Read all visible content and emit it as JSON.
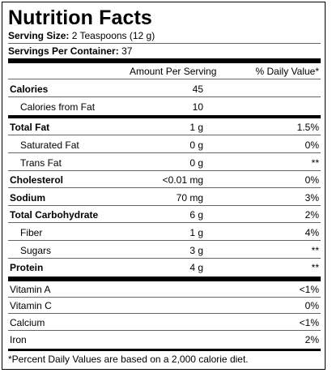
{
  "label": {
    "title": "Nutrition Facts",
    "serving_size_label": "Serving Size:",
    "serving_size_value": "2 Teaspoons (12 g)",
    "servings_per_container_label": "Servings Per Container:",
    "servings_per_container_value": "37",
    "col_amount_header": "Amount Per Serving",
    "col_dv_header": "% Daily Value*",
    "rows": [
      {
        "name": "Calories",
        "amount": "45",
        "dv": ""
      },
      {
        "name": "Calories from Fat",
        "amount": "10",
        "dv": ""
      },
      {
        "name": "Total Fat",
        "amount": "1 g",
        "dv": "1.5%"
      },
      {
        "name": "Saturated Fat",
        "amount": "0 g",
        "dv": "0%"
      },
      {
        "name": "Trans Fat",
        "amount": "0 g",
        "dv": "**"
      },
      {
        "name": "Cholesterol",
        "amount": "<0.01 mg",
        "dv": "0%"
      },
      {
        "name": "Sodium",
        "amount": "70 mg",
        "dv": "3%"
      },
      {
        "name": "Total Carbohydrate",
        "amount": "6 g",
        "dv": "2%"
      },
      {
        "name": "Fiber",
        "amount": "1 g",
        "dv": "4%"
      },
      {
        "name": "Sugars",
        "amount": "3 g",
        "dv": "**"
      },
      {
        "name": "Protein",
        "amount": "4 g",
        "dv": "**"
      }
    ],
    "vitamins": [
      {
        "name": "Vitamin A",
        "dv": "<1%"
      },
      {
        "name": "Vitamin C",
        "dv": "0%"
      },
      {
        "name": "Calcium",
        "dv": "<1%"
      },
      {
        "name": "Iron",
        "dv": "2%"
      }
    ],
    "footnote": "*Percent Daily Values are based on a 2,000 calorie diet."
  }
}
